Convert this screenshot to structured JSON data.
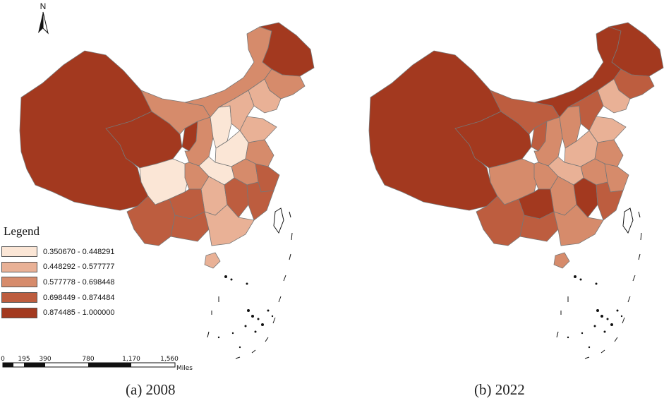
{
  "north_arrow": {
    "label": "N"
  },
  "legend": {
    "title": "Legend",
    "classes": [
      {
        "range": "0.350670 - 0.448291",
        "color": "#fbe6d6"
      },
      {
        "range": "0.448292 - 0.577777",
        "color": "#e9b196"
      },
      {
        "range": "0.577778 - 0.698448",
        "color": "#d68b6b"
      },
      {
        "range": "0.698449 - 0.874484",
        "color": "#bd5d3f"
      },
      {
        "range": "0.874485 - 1.000000",
        "color": "#a3391f"
      }
    ]
  },
  "scale_bar": {
    "ticks": [
      "0",
      "195",
      "390",
      "780",
      "1,170",
      "1,560"
    ],
    "unit": "Miles"
  },
  "panels": [
    {
      "caption": "(a) 2008"
    },
    {
      "caption": "(b) 2022"
    }
  ]
}
